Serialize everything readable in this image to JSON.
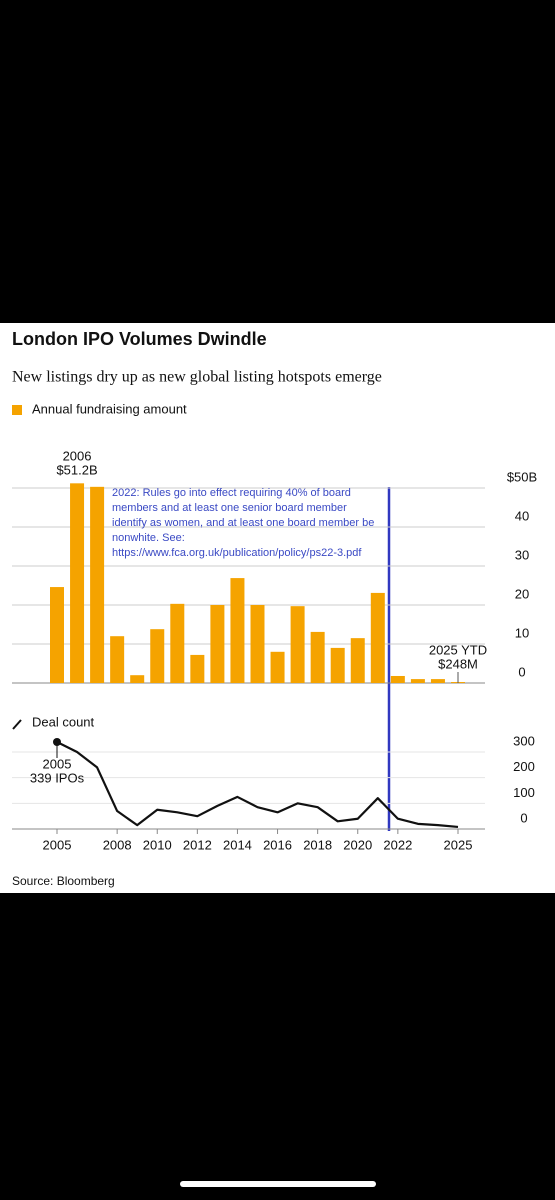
{
  "chart_data": {
    "type": "combo",
    "title": "London IPO Volumes Dwindle",
    "subtitle": "New listings dry up as new global listing hotspots emerge",
    "categories": [
      "2005",
      null,
      null,
      "2008",
      null,
      "2010",
      null,
      "2012",
      null,
      "2014",
      null,
      "2016",
      null,
      "2018",
      null,
      "2020",
      null,
      "2022",
      null,
      null,
      "2025"
    ],
    "series": [
      {
        "name": "Annual fundraising amount",
        "color": "#f5a300",
        "values": [
          24.6,
          51.2,
          50.3,
          12,
          2,
          13.8,
          20.3,
          7.2,
          20,
          26.9,
          20,
          8,
          19.7,
          13.1,
          9,
          11.5,
          23.1,
          1.8,
          1,
          1,
          0.248
        ]
      },
      {
        "name": "Deal count",
        "color": "#111111",
        "axis": "y2",
        "values": [
          339,
          300,
          240,
          70,
          15,
          75,
          65,
          50,
          90,
          125,
          85,
          65,
          100,
          85,
          30,
          40,
          120,
          40,
          20,
          15,
          8
        ]
      }
    ],
    "ylim": [
      0,
      50
    ],
    "yticks": [
      0,
      10,
      20,
      30,
      40,
      {
        "value": 50,
        "label": "$50B"
      }
    ],
    "y2lim": [
      0,
      339
    ],
    "y2ticks": [
      0,
      100,
      200,
      300
    ],
    "grid": true,
    "annotations": {
      "peak": [
        "2006",
        "$51.2B"
      ],
      "ytd": [
        "2025 YTD",
        "$248M"
      ],
      "deals": [
        "2005",
        "339 IPOs"
      ],
      "note": [
        "2022: Rules go into effect requiring 40% of board",
        "members and at least one senior board member",
        "identify as women, and at least one board member be",
        "nonwhite. See:",
        "https://www.fca.org.uk/publication/policy/ps22-3.pdf"
      ]
    },
    "source": "Source: Bloomberg"
  }
}
